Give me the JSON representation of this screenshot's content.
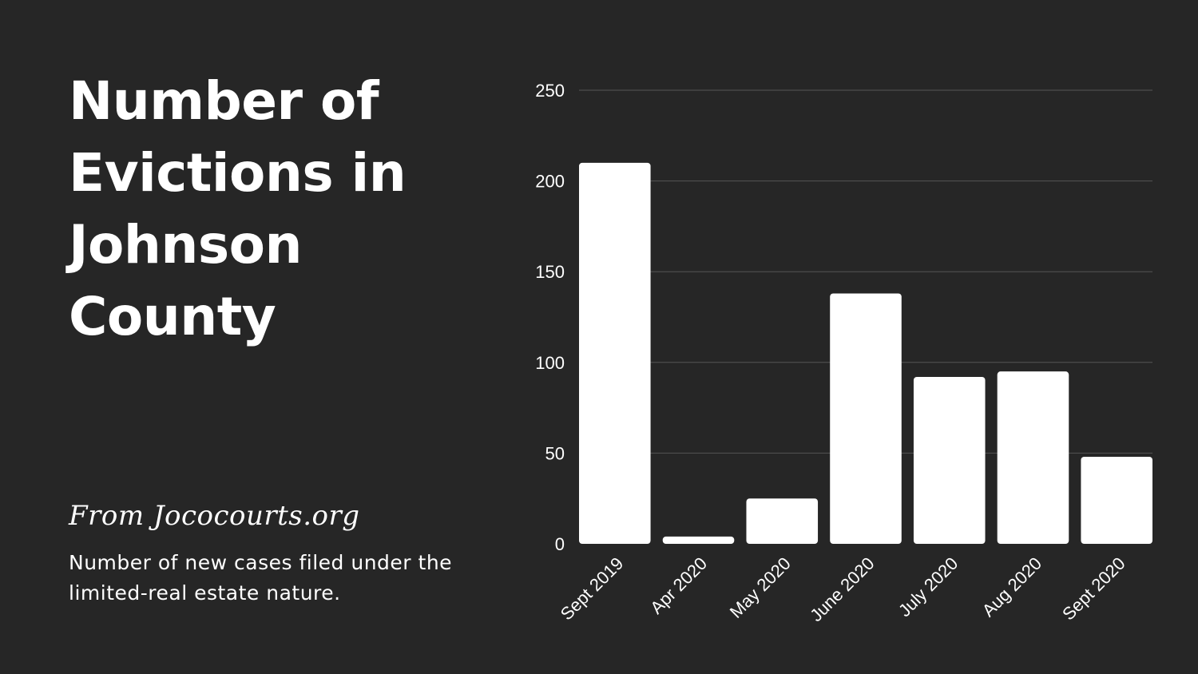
{
  "slide": {
    "title": "Number of Evictions in Johnson County",
    "source": "From Jococourts.org",
    "subtitle": "Number of new cases filed under the limited-real estate nature."
  },
  "colors": {
    "background": "#262626",
    "bar": "#ffffff",
    "grid": "#555555",
    "text": "#ffffff"
  },
  "chart_data": {
    "type": "bar",
    "categories": [
      "Sept 2019",
      "Apr 2020",
      "May 2020",
      "June 2020",
      "July 2020",
      "Aug 2020",
      "Sept 2020"
    ],
    "values": [
      210,
      4,
      25,
      138,
      92,
      95,
      48
    ],
    "title": "",
    "xlabel": "",
    "ylabel": "",
    "ylim": [
      0,
      250
    ],
    "yticks": [
      0,
      50,
      100,
      150,
      200,
      250
    ],
    "grid": true,
    "legend": "none"
  }
}
